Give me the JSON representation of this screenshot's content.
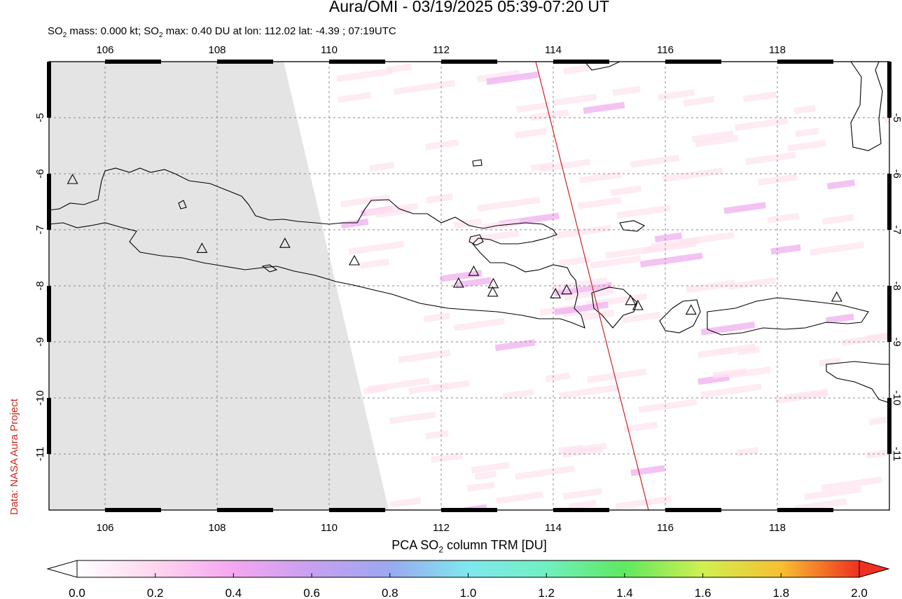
{
  "title": "Aura/OMI - 03/19/2025 05:39-07:20 UT",
  "subtitle": {
    "mass_prefix": "SO",
    "mass_sub": "2",
    "mass_text": " mass: 0.000 kt; SO",
    "max_sub": "2",
    "max_text": " max: 0.40 DU at lon: 112.02 lat: -4.39 ; 07:19UTC"
  },
  "credit": "Data: NASA Aura Project",
  "colorbar": {
    "label_prefix": "PCA SO",
    "label_sub": "2",
    "label_suffix": " column TRM [DU]",
    "ticks": [
      "0.0",
      "0.2",
      "0.4",
      "0.6",
      "0.8",
      "1.0",
      "1.2",
      "1.4",
      "1.6",
      "1.8",
      "2.0"
    ],
    "colors": [
      "#ffffff",
      "#ffd6f0",
      "#f5a6f0",
      "#c8a0f0",
      "#9aa8f0",
      "#80e8f0",
      "#70f0c0",
      "#60e860",
      "#d0f050",
      "#f8c030",
      "#f03020"
    ]
  },
  "map": {
    "lon_range": [
      105,
      120
    ],
    "lat_range": [
      -12,
      -4
    ],
    "lon_ticks": [
      "106",
      "108",
      "110",
      "112",
      "114",
      "116",
      "118"
    ],
    "lat_ticks": [
      "-5",
      "-6",
      "-7",
      "-8",
      "-9",
      "-10",
      "-11"
    ],
    "grid": true,
    "no_data_color": "#e4e4e4",
    "orbit_line_color": "#cc2222",
    "volcanoes": [
      {
        "lon": 105.42,
        "lat": -6.1
      },
      {
        "lon": 107.73,
        "lat": -7.33
      },
      {
        "lon": 109.21,
        "lat": -7.24
      },
      {
        "lon": 110.45,
        "lat": -7.55
      },
      {
        "lon": 112.31,
        "lat": -7.95
      },
      {
        "lon": 112.58,
        "lat": -7.74
      },
      {
        "lon": 112.93,
        "lat": -7.96
      },
      {
        "lon": 112.92,
        "lat": -8.11
      },
      {
        "lon": 114.04,
        "lat": -8.14
      },
      {
        "lon": 114.24,
        "lat": -8.07
      },
      {
        "lon": 115.38,
        "lat": -8.26
      },
      {
        "lon": 115.51,
        "lat": -8.35
      },
      {
        "lon": 116.46,
        "lat": -8.43
      },
      {
        "lon": 119.06,
        "lat": -8.2
      }
    ]
  }
}
